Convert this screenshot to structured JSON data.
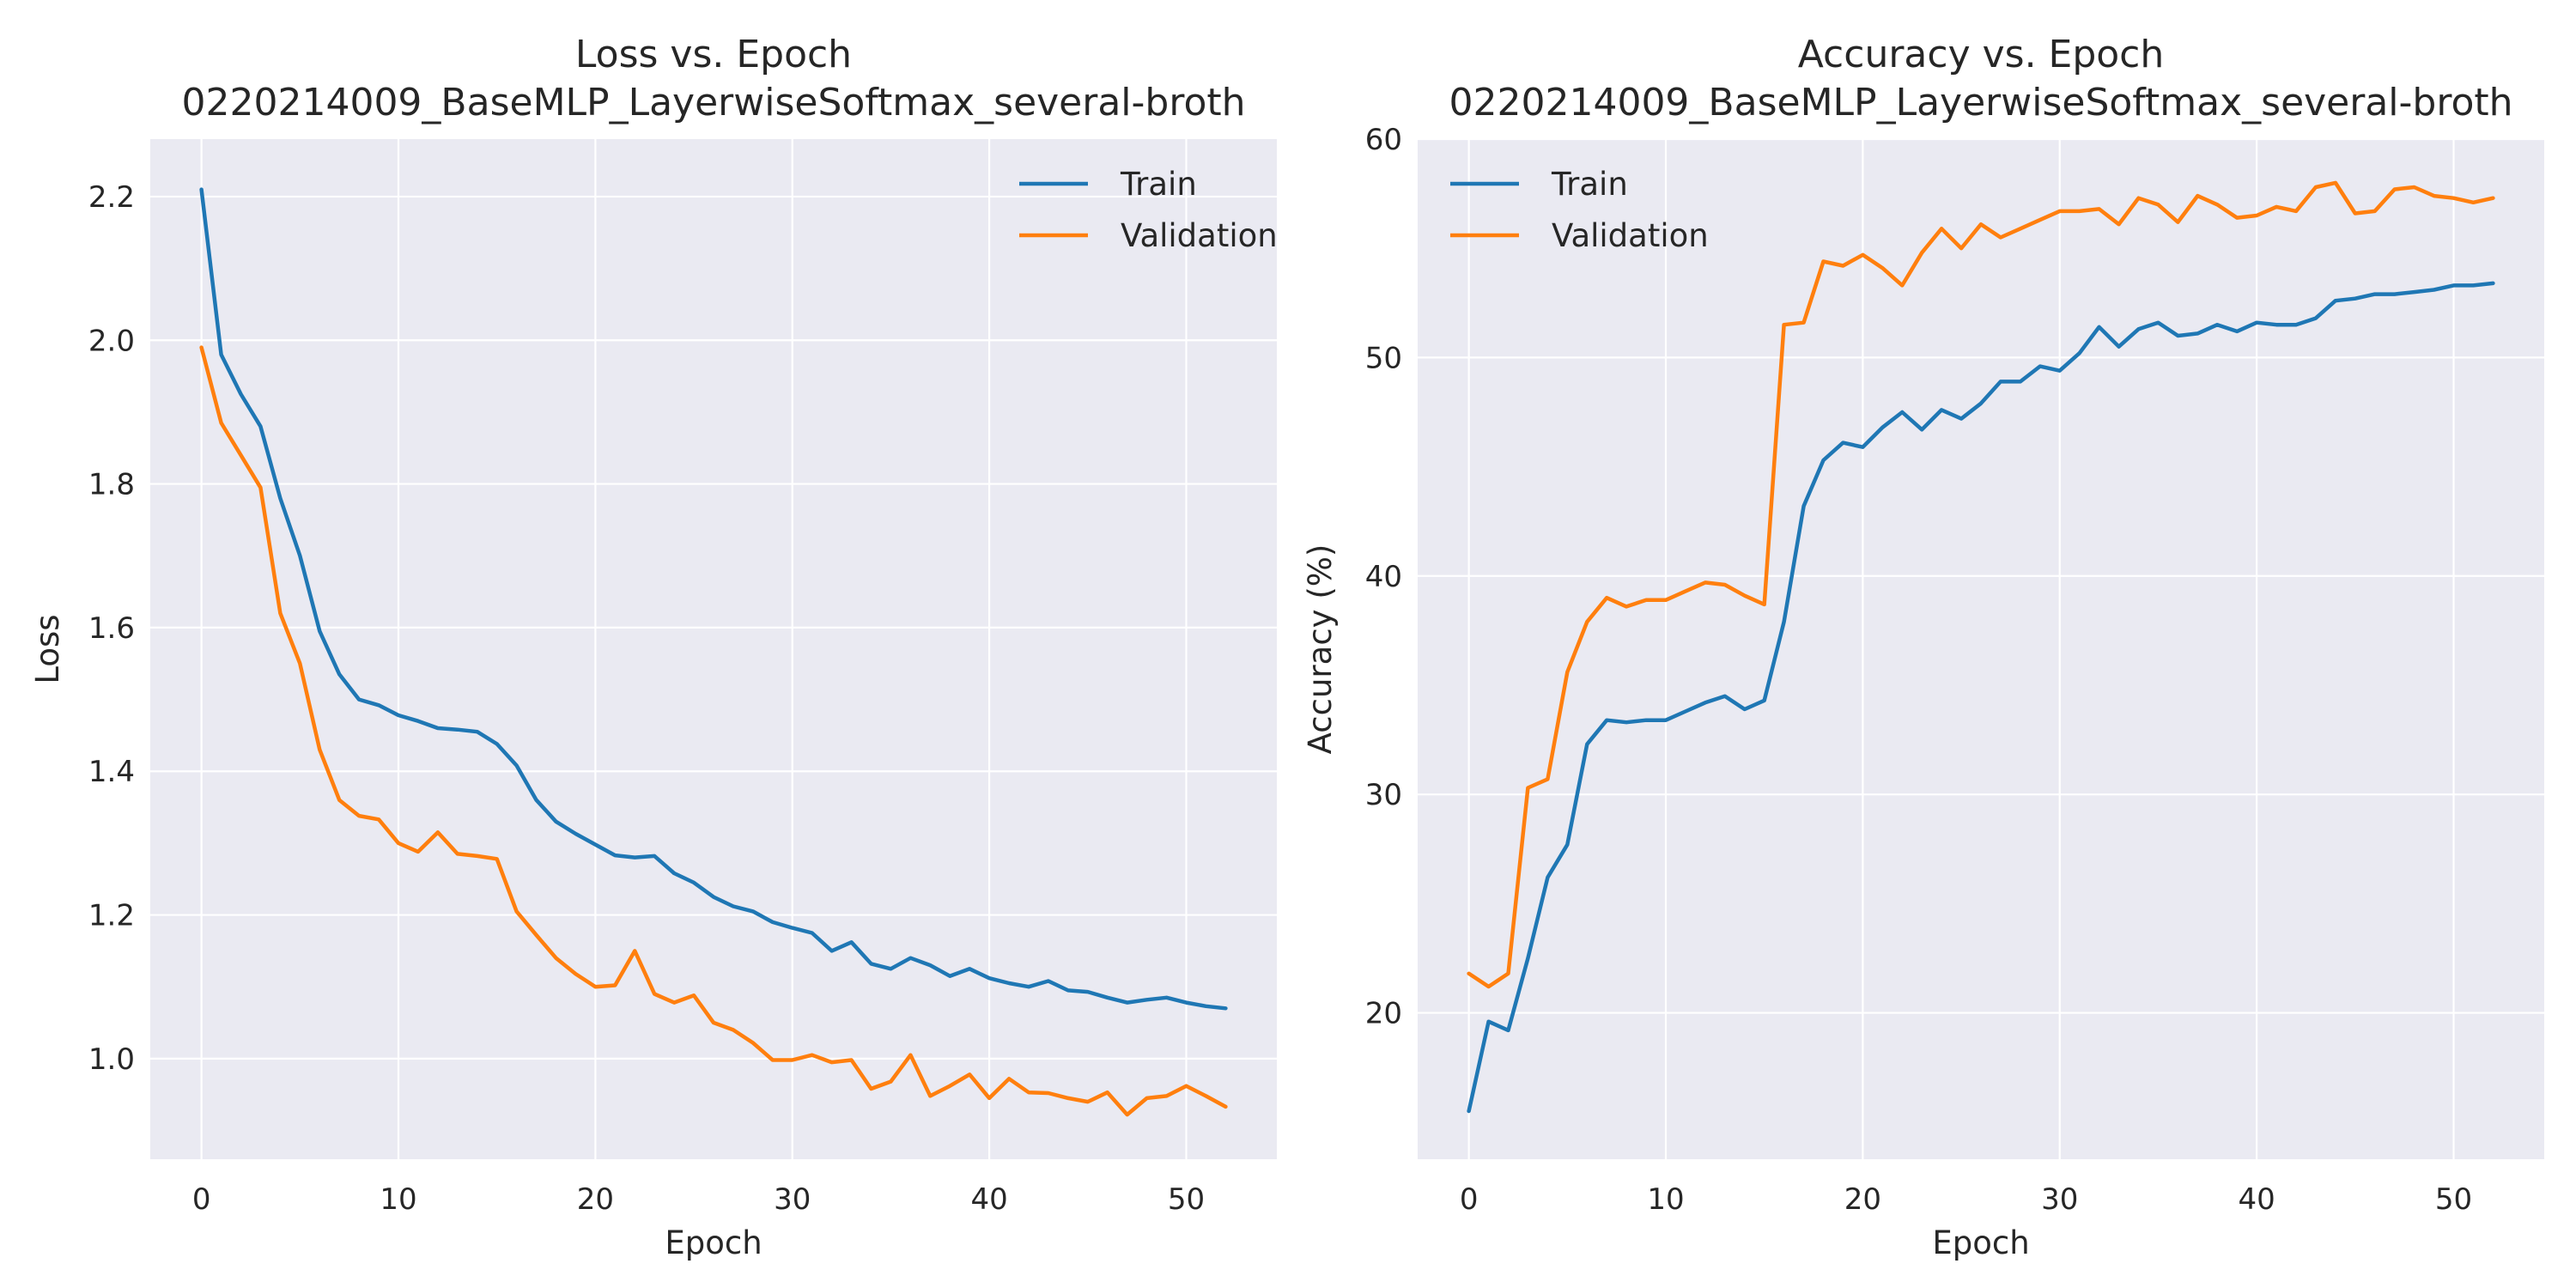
{
  "chart_data": [
    {
      "type": "line",
      "title": "Loss vs. Epoch\n0220214009_BaseMLP_LayerwiseSoftmax_several-broth",
      "xlabel": "Epoch",
      "ylabel": "Loss",
      "x": [
        0,
        1,
        2,
        3,
        4,
        5,
        6,
        7,
        8,
        9,
        10,
        11,
        12,
        13,
        14,
        15,
        16,
        17,
        18,
        19,
        20,
        21,
        22,
        23,
        24,
        25,
        26,
        27,
        28,
        29,
        30,
        31,
        32,
        33,
        34,
        35,
        36,
        37,
        38,
        39,
        40,
        41,
        42,
        43,
        44,
        45,
        46,
        47,
        48,
        49,
        50,
        51,
        52
      ],
      "xlim": [
        -2.6,
        54.6
      ],
      "ylim": [
        0.86,
        2.28
      ],
      "xticks": [
        0,
        10,
        20,
        30,
        40,
        50
      ],
      "yticks": [
        1.0,
        1.2,
        1.4,
        1.6,
        1.8,
        2.0,
        2.2
      ],
      "ytick_labels": [
        "1.0",
        "1.2",
        "1.4",
        "1.6",
        "1.8",
        "2.0",
        "2.2"
      ],
      "grid": true,
      "legend": "top-right",
      "series": [
        {
          "name": "Train",
          "color": "#1f77b4",
          "values": [
            2.21,
            1.98,
            1.925,
            1.88,
            1.78,
            1.7,
            1.595,
            1.535,
            1.5,
            1.492,
            1.478,
            1.47,
            1.46,
            1.458,
            1.455,
            1.438,
            1.408,
            1.36,
            1.33,
            1.313,
            1.298,
            1.283,
            1.28,
            1.282,
            1.258,
            1.245,
            1.225,
            1.212,
            1.205,
            1.19,
            1.182,
            1.175,
            1.15,
            1.162,
            1.132,
            1.125,
            1.14,
            1.13,
            1.115,
            1.125,
            1.112,
            1.105,
            1.1,
            1.108,
            1.095,
            1.093,
            1.085,
            1.078,
            1.082,
            1.085,
            1.078,
            1.073,
            1.07
          ]
        },
        {
          "name": "Validation",
          "color": "#ff7f0e",
          "values": [
            1.99,
            1.885,
            1.84,
            1.795,
            1.62,
            1.55,
            1.43,
            1.36,
            1.338,
            1.333,
            1.3,
            1.288,
            1.315,
            1.285,
            1.282,
            1.278,
            1.205,
            1.172,
            1.14,
            1.118,
            1.1,
            1.102,
            1.15,
            1.09,
            1.078,
            1.088,
            1.05,
            1.04,
            1.022,
            0.998,
            0.998,
            1.005,
            0.995,
            0.998,
            0.958,
            0.968,
            1.005,
            0.948,
            0.962,
            0.978,
            0.945,
            0.972,
            0.953,
            0.952,
            0.945,
            0.94,
            0.953,
            0.922,
            0.945,
            0.948,
            0.962,
            0.948,
            0.933
          ]
        }
      ]
    },
    {
      "type": "line",
      "title": "Accuracy vs. Epoch\n0220214009_BaseMLP_LayerwiseSoftmax_several-broth",
      "xlabel": "Epoch",
      "ylabel": "Accuracy (%)",
      "x": [
        0,
        1,
        2,
        3,
        4,
        5,
        6,
        7,
        8,
        9,
        10,
        11,
        12,
        13,
        14,
        15,
        16,
        17,
        18,
        19,
        20,
        21,
        22,
        23,
        24,
        25,
        26,
        27,
        28,
        29,
        30,
        31,
        32,
        33,
        34,
        35,
        36,
        37,
        38,
        39,
        40,
        41,
        42,
        43,
        44,
        45,
        46,
        47,
        48,
        49,
        50,
        51,
        52
      ],
      "xlim": [
        -2.6,
        54.6
      ],
      "ylim": [
        13.3,
        60.0
      ],
      "xticks": [
        0,
        10,
        20,
        30,
        40,
        50
      ],
      "yticks": [
        20,
        30,
        40,
        50,
        60
      ],
      "ytick_labels": [
        "20",
        "30",
        "40",
        "50",
        "60"
      ],
      "grid": true,
      "legend": "top-left",
      "series": [
        {
          "name": "Train",
          "color": "#1f77b4",
          "values": [
            15.5,
            19.6,
            19.2,
            22.5,
            26.2,
            27.7,
            32.3,
            33.4,
            33.3,
            33.4,
            33.4,
            33.8,
            34.2,
            34.5,
            33.9,
            34.3,
            37.9,
            43.2,
            45.3,
            46.1,
            45.9,
            46.8,
            47.5,
            46.7,
            47.6,
            47.2,
            47.9,
            48.9,
            48.9,
            49.6,
            49.4,
            50.2,
            51.4,
            50.5,
            51.3,
            51.6,
            51.0,
            51.1,
            51.5,
            51.2,
            51.6,
            51.5,
            51.5,
            51.8,
            52.6,
            52.7,
            52.9,
            52.9,
            53.0,
            53.1,
            53.3,
            53.3,
            53.4
          ]
        },
        {
          "name": "Validation",
          "color": "#ff7f0e",
          "values": [
            21.8,
            21.2,
            21.8,
            30.3,
            30.7,
            35.6,
            37.9,
            39.0,
            38.6,
            38.9,
            38.9,
            39.3,
            39.7,
            39.6,
            39.1,
            38.7,
            51.5,
            51.6,
            54.4,
            54.2,
            54.7,
            54.1,
            53.3,
            54.8,
            55.9,
            55.0,
            56.1,
            55.5,
            55.9,
            56.3,
            56.7,
            56.7,
            56.8,
            56.1,
            57.3,
            57.0,
            56.2,
            57.4,
            57.0,
            56.4,
            56.5,
            56.9,
            56.7,
            57.8,
            58.0,
            56.6,
            56.7,
            57.7,
            57.8,
            57.4,
            57.3,
            57.1,
            57.3
          ]
        }
      ]
    }
  ]
}
